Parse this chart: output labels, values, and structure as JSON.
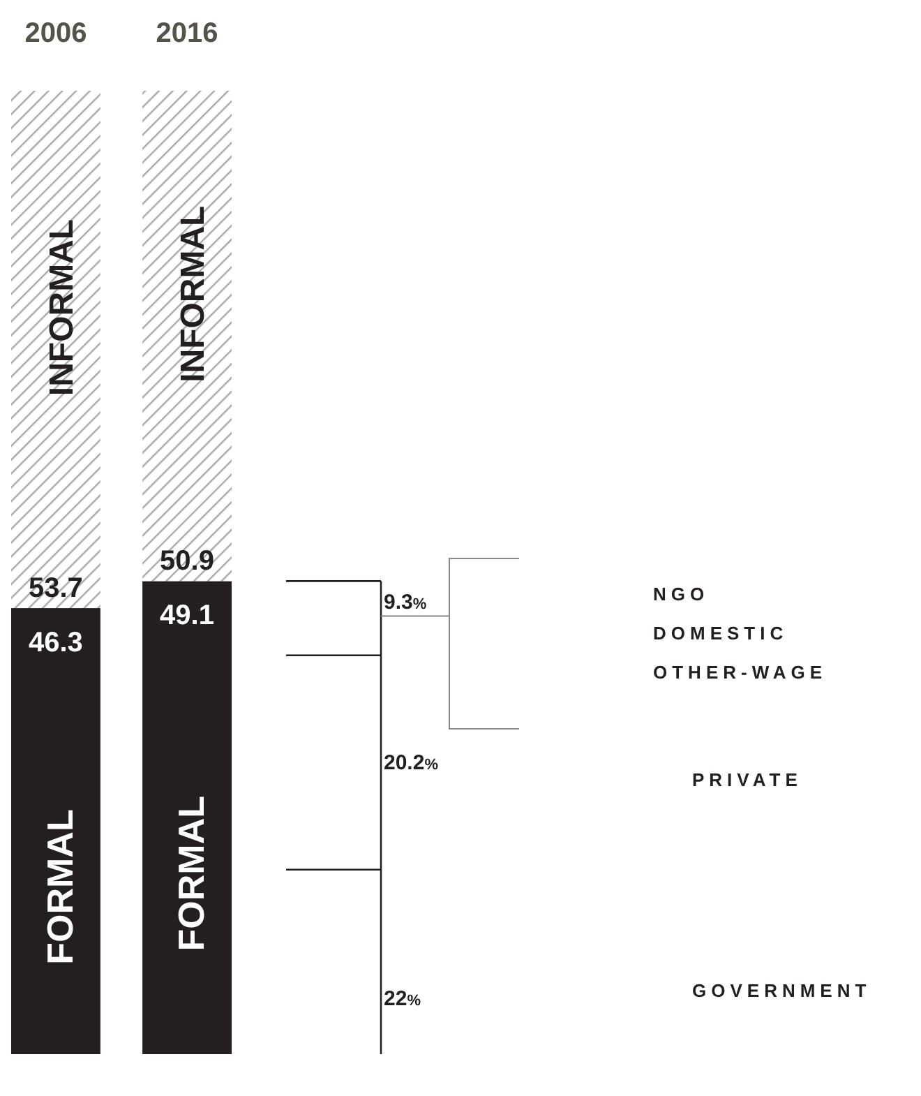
{
  "chart_data": {
    "type": "bar",
    "stacked": true,
    "data_labels": true,
    "categories": [
      "2006",
      "2016"
    ],
    "series": [
      {
        "name": "FORMAL",
        "color": "#231f20",
        "values": [
          46.3,
          49.1
        ]
      },
      {
        "name": "INFORMAL",
        "color": "#a8a8a8",
        "values": [
          53.7,
          50.9
        ]
      }
    ],
    "annotations": [
      "9.3%",
      "20.2%",
      "22%",
      "NGO",
      "DOMESTIC",
      "OTHER-WAGE",
      "PRIVATE",
      "GOVERNMENT"
    ]
  }
}
